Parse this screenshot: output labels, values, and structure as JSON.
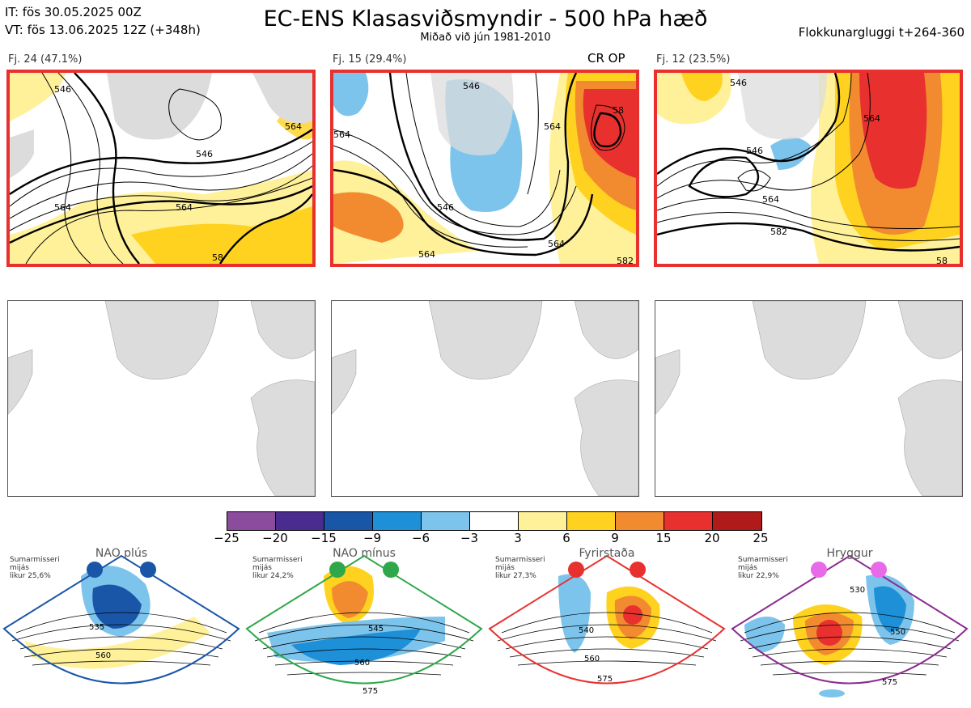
{
  "header": {
    "it_line": "IT: fös 30.05.2025 00Z",
    "vt_line": "VT: fös 13.06.2025 12Z  (+348h)",
    "title": "EC-ENS Klasasviðsmyndir - 500 hPa hæð",
    "subtitle": "Miðað við jún 1981-2010",
    "window": "Flokkunargluggi t+264-360"
  },
  "clusters": [
    {
      "label": "Fj. 24 (47.1%)",
      "contours": [
        "546",
        "564",
        "546",
        "564",
        "564",
        "58"
      ]
    },
    {
      "label": "Fj. 15 (29.4%)",
      "tag": "CR OP",
      "contours": [
        "546",
        "564",
        "564",
        "564",
        "58",
        "564",
        "582",
        "546"
      ]
    },
    {
      "label": "Fj. 12 (23.5%)",
      "contours": [
        "546",
        "564",
        "546",
        "564",
        "582",
        "58"
      ]
    }
  ],
  "colorbar": {
    "colors": [
      "#8b4c9e",
      "#4a2c8f",
      "#1a56a8",
      "#1e90d8",
      "#7dc4ec",
      "#ffffff",
      "#fff19a",
      "#ffd21f",
      "#f28b30",
      "#e8312f",
      "#b01a1a"
    ],
    "ticks": [
      "−25",
      "−20",
      "−15",
      "−9",
      "−6",
      "−3",
      "3",
      "6",
      "9",
      "15",
      "20",
      "25"
    ]
  },
  "regimes": [
    {
      "name": "NAO plús",
      "season": "Sumarmisseri",
      "mid": "mijás",
      "prob": "likur 25,6%",
      "color": "#1a56a8",
      "labels": [
        "535",
        "560"
      ]
    },
    {
      "name": "NAO mínus",
      "season": "Sumarmisseri",
      "mid": "mijás",
      "prob": "likur 24,2%",
      "color": "#2ea84a",
      "labels": [
        "545",
        "560",
        "575"
      ]
    },
    {
      "name": "Fyrirstaða",
      "season": "Sumarmisseri",
      "mid": "mijás",
      "prob": "likur 27,3%",
      "color": "#e8312f",
      "labels": [
        "540",
        "560",
        "575"
      ]
    },
    {
      "name": "Hryggur",
      "season": "Sumarmisseri",
      "mid": "mijás",
      "prob": "likur 22,9%",
      "color": "#8a2c8f",
      "labels": [
        "530",
        "550",
        "575"
      ]
    }
  ]
}
